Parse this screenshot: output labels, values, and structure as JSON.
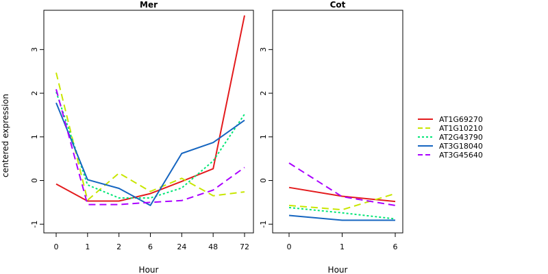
{
  "figure": {
    "ylabel": "centered expression"
  },
  "legend": {
    "entries": [
      {
        "name": "AT1G69270",
        "color": "#e31a1c",
        "dash": "solid"
      },
      {
        "name": "AT1G10210",
        "color": "#c8e600",
        "dash": "dashed"
      },
      {
        "name": "AT2G43790",
        "color": "#00e676",
        "dash": "dotted"
      },
      {
        "name": "AT3G18040",
        "color": "#1565c0",
        "dash": "solid"
      },
      {
        "name": "AT3G45640",
        "color": "#aa00ff",
        "dash": "dashed"
      }
    ]
  },
  "chart_data": [
    {
      "type": "line",
      "title": "Mer",
      "xlabel": "Hour",
      "ylabel": "centered expression",
      "categories": [
        "0",
        "1",
        "2",
        "6",
        "24",
        "48",
        "72"
      ],
      "ylim": [
        -1.2,
        3.9
      ],
      "yticks": [
        -1,
        0,
        1,
        2,
        3
      ],
      "grid": false,
      "series": [
        {
          "name": "AT1G69270",
          "values": [
            -0.08,
            -0.47,
            -0.47,
            -0.3,
            -0.02,
            0.27,
            3.78
          ]
        },
        {
          "name": "AT1G10210",
          "values": [
            2.47,
            -0.45,
            0.17,
            -0.25,
            0.05,
            -0.35,
            -0.26
          ]
        },
        {
          "name": "AT2G43790",
          "values": [
            2.03,
            -0.1,
            -0.4,
            -0.4,
            -0.17,
            0.45,
            1.52
          ]
        },
        {
          "name": "AT3G18040",
          "values": [
            1.78,
            0.02,
            -0.18,
            -0.57,
            0.62,
            0.87,
            1.38
          ]
        },
        {
          "name": "AT3G45640",
          "values": [
            2.09,
            -0.55,
            -0.55,
            -0.5,
            -0.46,
            -0.22,
            0.3
          ]
        }
      ]
    },
    {
      "type": "line",
      "title": "Cot",
      "xlabel": "Hour",
      "categories": [
        "0",
        "1",
        "6"
      ],
      "ylim": [
        -1.2,
        3.9
      ],
      "yticks": [
        -1,
        0,
        1,
        2,
        3
      ],
      "grid": false,
      "series": [
        {
          "name": "AT1G69270",
          "values": [
            -0.16,
            -0.36,
            -0.48
          ]
        },
        {
          "name": "AT1G10210",
          "values": [
            -0.57,
            -0.67,
            -0.3
          ]
        },
        {
          "name": "AT2G43790",
          "values": [
            -0.62,
            -0.74,
            -0.88
          ]
        },
        {
          "name": "AT3G18040",
          "values": [
            -0.8,
            -0.91,
            -0.91
          ]
        },
        {
          "name": "AT3G45640",
          "values": [
            0.4,
            -0.37,
            -0.57
          ]
        }
      ]
    }
  ]
}
